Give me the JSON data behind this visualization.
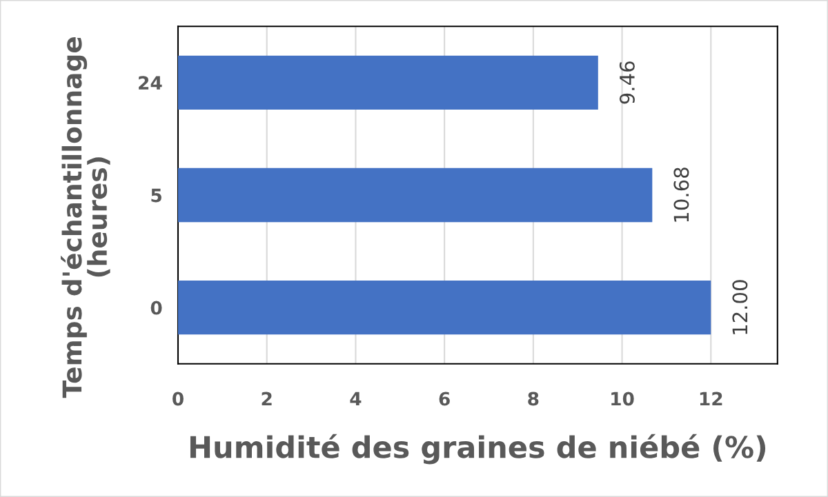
{
  "chart_data": {
    "type": "bar",
    "orientation": "horizontal",
    "xlabel": "Humidité des graines de niébé (%)",
    "ylabel": "Temps d'échantillonnage\n(heures)",
    "categories": [
      "24",
      "5",
      "0"
    ],
    "values": [
      9.46,
      10.68,
      12.0
    ],
    "color": "#4472c4",
    "value_labels": [
      "9.46",
      "10.68",
      "12.00"
    ],
    "xlim": [
      0,
      13.5
    ],
    "xticks": [
      0,
      2,
      4,
      6,
      8,
      10,
      12
    ],
    "grid": "x"
  }
}
